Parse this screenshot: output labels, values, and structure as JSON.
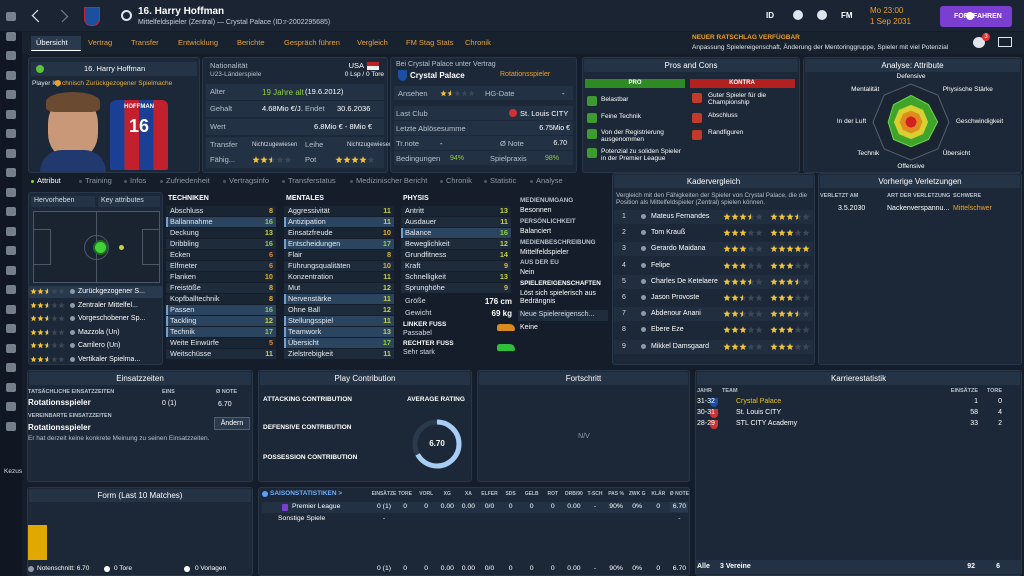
{
  "header": {
    "player": "16. Harry Hoffman",
    "subtitle": "Mittelfeldspieler (Zentral) — Crystal Palace (ID:r-2002295685)",
    "id": "ID",
    "fm": "FM",
    "time": "Mo 23:00",
    "date": "1 Sep 2031",
    "continue": "FORTFAHREN",
    "notifications": "3"
  },
  "nav": {
    "items": [
      "Übersicht",
      "Vertrag",
      "Transfer",
      "Entwicklung",
      "Berichte",
      "Gespräch führen",
      "Vergleich",
      "FM Stag Stats",
      "Chronik"
    ],
    "news_title": "NEUER RATSCHLAG VERFÜGBAR",
    "news_text": "Anpassung Spielereigenschaft, Änderung der Mentoringgruppe, Spieler mit viel Potenzial"
  },
  "sidebar": {
    "user": "Kezus"
  },
  "profile": {
    "name": "16. Harry Hoffman",
    "iq_label": "Player IQ:",
    "iq": "chnisch Zurückgezogener Spielmache",
    "shirt_name": "HOFFMAN",
    "shirt_number": "16"
  },
  "info": {
    "nationality_label": "Nationalität",
    "nationality": "USA",
    "caps_label": "U23-Länderspiele",
    "caps": "0 Lsp / 0 Tore",
    "age_label": "Alter",
    "age": "19 Jahre alt",
    "birth": "(19.6.2012)",
    "wage_label": "Gehalt",
    "wage": "4.68Mio €/J.",
    "ends_label": "Endet",
    "ends": "30.6.2036",
    "value_label": "Wert",
    "value": "6.8Mio € - 8Mio €",
    "transfer_label": "Transfer",
    "transfer": "Nichtzugewiesen",
    "loan_label": "Leihe",
    "loan": "Nichtzugewiesen",
    "ability_label": "Fähig...",
    "ability": 2.5,
    "potential_label": "Pot",
    "potential": 4
  },
  "club": {
    "contract": "Bei Crystal Palace unter Vertrag",
    "club": "Crystal Palace",
    "status": "Rotationsspieler",
    "reputation_label": "Ansehen",
    "reputation": 1.5,
    "hg_label": "HG-Date",
    "hg": "-",
    "last_club_label": "Last Club",
    "last_club": "St. Louis CITY",
    "fee_label": "Letzte Ablösesumme",
    "fee": "6.75Mio €",
    "training_label": "Tr.note",
    "training": "-",
    "rating_label": "Ø Note",
    "rating": "6.70",
    "condition_label": "Bedingungen",
    "condition": "94%",
    "sharpness_label": "Spielpraxis",
    "sharpness": "98%"
  },
  "pros_cons": {
    "title": "Pros and Cons",
    "pro_header": "PRO",
    "con_header": "KONTRA",
    "pros": [
      "Belastbar",
      "Feine Technik",
      "Von der Registrierung ausgenommen",
      "Potenzial zu soliden Spieler in der Premier League"
    ],
    "cons": [
      "Guter Spieler für die Championship",
      "Abschluss",
      "Randfiguren"
    ]
  },
  "analysis": {
    "type": "radar",
    "title": "Analyse: Attribute",
    "axes": [
      "Defensive",
      "Physische Stärke",
      "Geschwindigkeit",
      "Übersicht",
      "Offensive",
      "Technik",
      "In der Luft",
      "Mentalität"
    ],
    "values": [
      14,
      13,
      14,
      13,
      13,
      13,
      12,
      13
    ],
    "max": 20
  },
  "tabs": [
    "Attribut",
    "Training",
    "Infos",
    "Zufriedenheit",
    "Vertragsinfo",
    "Transferstatus",
    "Medizinischer Bericht",
    "Chronik",
    "Statistic",
    "Analyse"
  ],
  "positions": {
    "highlight": "Hervorheben",
    "filter": "Key attributes",
    "roles": [
      {
        "name": "Zurückgezogener S...",
        "rating": 2.5
      },
      {
        "name": "Zentraler Mittelfel...",
        "rating": 2.5
      },
      {
        "name": "Vorgeschobener Sp...",
        "rating": 2.5
      },
      {
        "name": "Mazzola (Un)",
        "rating": 2.5
      },
      {
        "name": "Carrilero (Un)",
        "rating": 2.5
      },
      {
        "name": "Vertikaler Spielma...",
        "rating": 2.5
      }
    ]
  },
  "attributes": {
    "technical": {
      "title": "TECHNIKEN",
      "items": [
        {
          "name": "Abschluss",
          "value": 8
        },
        {
          "name": "Ballannahme",
          "value": 16,
          "key": true
        },
        {
          "name": "Deckung",
          "value": 13
        },
        {
          "name": "Dribbling",
          "value": 16
        },
        {
          "name": "Ecken",
          "value": 6
        },
        {
          "name": "Elfmeter",
          "value": 6
        },
        {
          "name": "Flanken",
          "value": 10
        },
        {
          "name": "Freistöße",
          "value": 8
        },
        {
          "name": "Kopfballtechnik",
          "value": 8
        },
        {
          "name": "Passen",
          "value": 16,
          "key": true
        },
        {
          "name": "Tackling",
          "value": 12,
          "key": true
        },
        {
          "name": "Technik",
          "value": 17,
          "key": true
        },
        {
          "name": "Weite Einwürfe",
          "value": 5
        },
        {
          "name": "Weitschüsse",
          "value": 11
        }
      ]
    },
    "mental": {
      "title": "MENTALES",
      "items": [
        {
          "name": "Aggressivität",
          "value": 11
        },
        {
          "name": "Antizipation",
          "value": 11,
          "key": true
        },
        {
          "name": "Einsatzfreude",
          "value": 10
        },
        {
          "name": "Entscheidungen",
          "value": 17,
          "key": true
        },
        {
          "name": "Flair",
          "value": 8
        },
        {
          "name": "Führungsqualitäten",
          "value": 10
        },
        {
          "name": "Konzentration",
          "value": 11
        },
        {
          "name": "Mut",
          "value": 12
        },
        {
          "name": "Nervenstärke",
          "value": 11,
          "key": true
        },
        {
          "name": "Ohne Ball",
          "value": 12
        },
        {
          "name": "Stellungsspiel",
          "value": 11,
          "key": true
        },
        {
          "name": "Teamwork",
          "value": 13,
          "key": true
        },
        {
          "name": "Übersicht",
          "value": 17,
          "key": true
        },
        {
          "name": "Zielstrebigkeit",
          "value": 11
        }
      ]
    },
    "physical": {
      "title": "PHYSIS",
      "items": [
        {
          "name": "Antritt",
          "value": 13
        },
        {
          "name": "Ausdauer",
          "value": 11
        },
        {
          "name": "Balance",
          "value": 16,
          "key": true
        },
        {
          "name": "Beweglichkeit",
          "value": 12
        },
        {
          "name": "Grundfitness",
          "value": 14
        },
        {
          "name": "Kraft",
          "value": 9
        },
        {
          "name": "Schnelligkeit",
          "value": 13
        },
        {
          "name": "Sprunghöhe",
          "value": 9
        }
      ],
      "height_label": "Größe",
      "height": "176 cm",
      "weight_label": "Gewicht",
      "weight": "69 kg",
      "left_foot_label": "LINKER FUSS",
      "left_foot": "Passabel",
      "right_foot_label": "RECHTER FUSS",
      "right_foot": "Sehr stark"
    }
  },
  "media": {
    "items": [
      {
        "label": "MEDIENUMGANG",
        "value": "Besonnen"
      },
      {
        "label": "PERSÖNLICHKEIT",
        "value": "Balanciert"
      },
      {
        "label": "MEDIENBESCHREIBUNG",
        "value": "Mittelfeldspieler"
      },
      {
        "label": "AUS DER EU",
        "value": "Nein"
      }
    ],
    "traits_label": "SPIELEREIGENSCHAFTEN",
    "trait": "Löst sich spielerisch aus Bedrängnis",
    "new_trait": "Neue Spielereigensch...",
    "new_trait_value": "Keine"
  },
  "squad_comparison": {
    "title": "Kadervergleich",
    "text": "Vergleich mit den Fähigkeiten der Spieler von Crystal Palace, die die Position als Mittelfeldspieler (Zentral) spielen können.",
    "players": [
      {
        "rank": 1,
        "name": "Mateus Fernandes",
        "current": 3.5,
        "potential": 3.5
      },
      {
        "rank": 2,
        "name": "Tom Krauß",
        "current": 3,
        "potential": 3
      },
      {
        "rank": 3,
        "name": "Gerardo Maidana",
        "current": 3,
        "potential": 5
      },
      {
        "rank": 4,
        "name": "Felipe",
        "current": 3,
        "potential": 3
      },
      {
        "rank": 5,
        "name": "Charles De Ketelaere",
        "current": 3.5,
        "potential": 3.5
      },
      {
        "rank": 6,
        "name": "Jason Provoste",
        "current": 2.5,
        "potential": 3
      },
      {
        "rank": 7,
        "name": "Abdenour Anani",
        "current": 2.5,
        "potential": 3.5
      },
      {
        "rank": 8,
        "name": "Ebere Eze",
        "current": 3,
        "potential": 3
      },
      {
        "rank": 9,
        "name": "Mikkel Damsgaard",
        "current": 3,
        "potential": 3
      }
    ]
  },
  "injuries": {
    "title": "Vorherige Verletzungen",
    "headers": [
      "VERLETZT AM",
      "ART DER VERLETZUNG",
      "SCHWERE"
    ],
    "rows": [
      [
        "3.5.2030",
        "Nackenverspannu...",
        "Mittelschwer"
      ]
    ]
  },
  "playing_time": {
    "title": "Einsatzzeiten",
    "actual_label": "TATSÄCHLICHE EINSATZZEITEN",
    "actual": "Rotationsspieler",
    "apps_label": "EINS",
    "apps": "0 (1)",
    "rating_label": "Ø NOTE",
    "rating": "6.70",
    "agreed_label": "VEREINBARTE EINSATZZEITEN",
    "agreed": "Rotationsspieler",
    "opinion": "Er hat derzeit keine konkrete Meinung zu seinen Einsatzzeiten.",
    "change": "Ändern"
  },
  "contribution": {
    "title": "Play Contribution",
    "attacking": "ATTACKING CONTRIBUTION",
    "defensive": "DEFENSIVE CONTRIBUTION",
    "possession": "POSSESSION CONTRIBUTION",
    "rating_title": "AVERAGE RATING",
    "rating": 6.7,
    "rating_label": "6.70",
    "max": 10
  },
  "progress": {
    "title": "Fortschritt",
    "empty": "N/V"
  },
  "career": {
    "title": "Karrierestatistik",
    "headers": [
      "JAHR",
      "TEAM",
      "EINSÄTZE",
      "TORE"
    ],
    "rows": [
      [
        "31-32",
        "Crystal Palace",
        "1",
        "0"
      ],
      [
        "30-31",
        "St. Louis CITY",
        "58",
        "4"
      ],
      [
        "28-29",
        "STL CITY Academy",
        "33",
        "2"
      ]
    ],
    "total": [
      "Alle",
      "3 Vereine",
      "92",
      "6"
    ]
  },
  "form": {
    "type": "bar",
    "title": "Form (Last 10 Matches)",
    "values": [
      6.7
    ],
    "ylim": [
      0,
      10
    ],
    "color": "#e0a800",
    "average": "Notenschnitt: 6.70",
    "goals": "0 Tore",
    "assists": "0 Vorlagen"
  },
  "season": {
    "title": "SAISONSTATISTIKEN >",
    "headers": [
      "EINSÄTZE",
      "TORE",
      "VORL",
      "XG",
      "XA",
      "ELFER",
      "SDS",
      "GELB",
      "ROT",
      "DRB/90",
      "T-SCH",
      "PAS %",
      "ZWK G",
      "KLÄR",
      "Ø NOTE"
    ],
    "rows": [
      {
        "name": "Premier League",
        "cells": [
          "0 (1)",
          "0",
          "0",
          "0.00",
          "0.00",
          "0/0",
          "0",
          "0",
          "0",
          "0.00",
          "-",
          "90%",
          "0%",
          "0",
          "6.70"
        ]
      },
      {
        "name": "Sonstige Spiele",
        "cells": [
          "-",
          null,
          null,
          null,
          null,
          null,
          null,
          null,
          null,
          null,
          null,
          null,
          null,
          null,
          "-"
        ]
      }
    ],
    "total": [
      "0 (1)",
      "0",
      "0",
      "0.00",
      "0.00",
      "0/0",
      "0",
      "0",
      "0",
      "0.00",
      "-",
      "90%",
      "0%",
      "0",
      "6.70"
    ]
  }
}
